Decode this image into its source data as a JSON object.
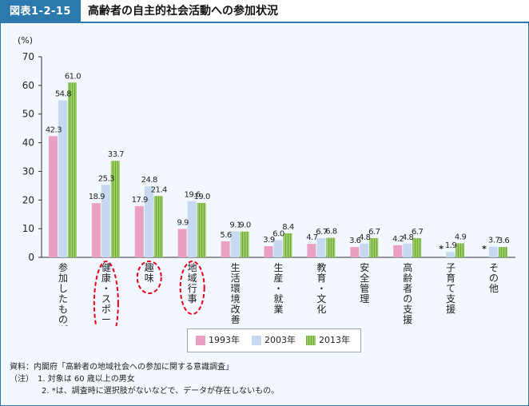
{
  "header": {
    "figure_label": "図表1-2-15",
    "title": "高齢者の自主的社会活動への参加状況"
  },
  "notes": [
    "資料：内閣府「高齢者の地域社会への参加に関する意識調査」",
    "（注）　1.  対象は 60 歳以上の男女",
    "　　　　2. *は、調査時に選択肢がないなどで、データが存在しないもの。"
  ],
  "colors": {
    "s1993": "#eaa0c0",
    "s2003": "#c6d9f0",
    "s2013": "#9ccc65",
    "s2013_stripe": "#6ea83a",
    "highlight": "#e8001c"
  },
  "chart_data": {
    "type": "bar",
    "ylabel": "(%)",
    "ylim": [
      0,
      70
    ],
    "yticks": [
      0,
      10,
      20,
      30,
      40,
      50,
      60,
      70
    ],
    "categories": [
      "参加したものがある",
      "健康・スポーツ",
      "趣味",
      "地域行事",
      "生活環境改善",
      "生産・就業",
      "教育・文化",
      "安全管理",
      "高齢者の支援",
      "子育て支援",
      "その他"
    ],
    "highlighted": [
      "健康・スポーツ",
      "趣味",
      "地域行事"
    ],
    "series": [
      {
        "name": "1993年",
        "values": [
          42.3,
          18.9,
          17.9,
          9.9,
          5.6,
          3.9,
          4.7,
          3.6,
          4.2,
          null,
          null
        ]
      },
      {
        "name": "2003年",
        "values": [
          54.8,
          25.3,
          24.8,
          19.6,
          9.1,
          6.0,
          6.7,
          4.8,
          4.8,
          1.9,
          3.7
        ]
      },
      {
        "name": "2013年",
        "values": [
          61.0,
          33.7,
          21.4,
          19.0,
          9.0,
          8.4,
          6.8,
          6.7,
          6.7,
          4.9,
          3.6
        ]
      }
    ],
    "missing_marker": "*",
    "legend_position": "bottom",
    "grid": false
  }
}
